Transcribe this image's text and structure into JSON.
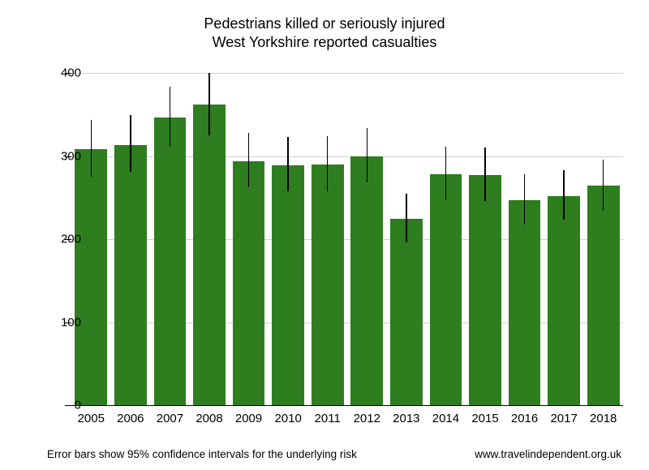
{
  "chart": {
    "type": "bar",
    "title_line1": "Pedestrians killed or seriously injured",
    "title_line2": "West Yorkshire reported casualties",
    "title_fontsize": 18,
    "categories": [
      "2005",
      "2006",
      "2007",
      "2008",
      "2009",
      "2010",
      "2011",
      "2012",
      "2013",
      "2014",
      "2015",
      "2016",
      "2017",
      "2018"
    ],
    "values": [
      308,
      313,
      346,
      362,
      294,
      289,
      290,
      300,
      224,
      278,
      277,
      247,
      252,
      264
    ],
    "error_low": [
      275,
      281,
      311,
      325,
      262,
      258,
      258,
      268,
      196,
      247,
      246,
      218,
      223,
      234
    ],
    "error_high": [
      343,
      349,
      383,
      400,
      328,
      323,
      324,
      334,
      255,
      311,
      310,
      278,
      283,
      296
    ],
    "bar_color": "#2e7d1f",
    "errorbar_color": "#000000",
    "background_color": "#ffffff",
    "grid_color": "#d0d0d0",
    "axis_color": "#000000",
    "xlim_count": 14,
    "ylim": [
      0,
      400
    ],
    "yticks": [
      0,
      100,
      200,
      300,
      400
    ],
    "ytick_labels": [
      "0",
      "100",
      "200",
      "300",
      "400"
    ],
    "bar_width_ratio": 0.82,
    "label_fontsize": 15,
    "footnote_left": "Error bars show 95% confidence intervals for the underlying risk",
    "footnote_right": "www.travelindependent.org.uk",
    "footnote_fontsize": 13.5
  }
}
